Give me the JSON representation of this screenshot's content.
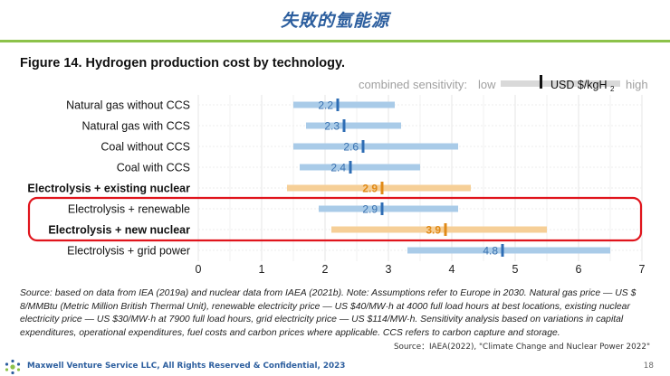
{
  "slide": {
    "title": "失敗的氫能源",
    "footer": "Maxwell Venture Service LLC, All Rights Reserved & Confidential, 2023",
    "page_number": "18",
    "source_ref": "Source：IAEA(2022), \"Climate Change and Nuclear Power 2022\""
  },
  "figure": {
    "title": "Figure 14. Hydrogen production cost by technology.",
    "source_note": "Source: based on data from IEA (2019a) and nuclear data from IAEA (2021b). Note: Assumptions refer to Europe in 2030. Natural gas price — US $ 8/MMBtu (Metric Million British Thermal Unit), renewable electricity price — US $40/MW·h at 4000 full load hours at best locations, existing nuclear electricity price — US $30/MW·h at 7900 full load hours, grid electricity price — US $114/MW·h. Sensitivity analysis based on variations in capital expenditures, operational expenditures, fuel costs and carbon prices where applicable. CCS refers to carbon capture and storage."
  },
  "legend": {
    "sensitivity_label": "combined sensitivity:",
    "low_label": "low",
    "unit_label": "USD $/kgH",
    "unit_subscript": "2",
    "high_label": "high"
  },
  "colors": {
    "blue_bar": "#a9cbe8",
    "blue_marker": "#2e6db4",
    "blue_label": "#3a72b0",
    "orange_bar": "#f6cf97",
    "orange_marker": "#e08a17",
    "orange_label": "#e08a17",
    "highlight_box": "#e0141c",
    "legend_bar": "#d9d9d9"
  },
  "chart_data": {
    "type": "range-bar",
    "xlim": [
      0,
      7
    ],
    "xticks": [
      0,
      1,
      2,
      3,
      4,
      5,
      6,
      7
    ],
    "rows": [
      {
        "label": "Natural gas without CCS",
        "low": 1.5,
        "high": 3.1,
        "value": 2.2,
        "value_label": "2.2",
        "color": "blue",
        "bold": false,
        "highlight": false
      },
      {
        "label": "Natural gas with CCS",
        "low": 1.7,
        "high": 3.2,
        "value": 2.3,
        "value_label": "2.3",
        "color": "blue",
        "bold": false,
        "highlight": false
      },
      {
        "label": "Coal without CCS",
        "low": 1.5,
        "high": 4.1,
        "value": 2.6,
        "value_label": "2.6",
        "color": "blue",
        "bold": false,
        "highlight": false
      },
      {
        "label": "Coal with CCS",
        "low": 1.6,
        "high": 3.5,
        "value": 2.4,
        "value_label": "2.4",
        "color": "blue",
        "bold": false,
        "highlight": false
      },
      {
        "label": "Electrolysis + existing nuclear",
        "low": 1.4,
        "high": 4.3,
        "value": 2.9,
        "value_label": "2.9",
        "color": "orange",
        "bold": true,
        "highlight": false
      },
      {
        "label": "Electrolysis + renewable",
        "low": 1.9,
        "high": 4.1,
        "value": 2.9,
        "value_label": "2.9",
        "color": "blue",
        "bold": false,
        "highlight": true
      },
      {
        "label": "Electrolysis + new nuclear",
        "low": 2.1,
        "high": 5.5,
        "value": 3.9,
        "value_label": "3.9",
        "color": "orange",
        "bold": true,
        "highlight": true
      },
      {
        "label": "Electrolysis + grid power",
        "low": 3.3,
        "high": 6.5,
        "value": 4.8,
        "value_label": "4.8",
        "color": "blue",
        "bold": false,
        "highlight": false
      }
    ]
  }
}
